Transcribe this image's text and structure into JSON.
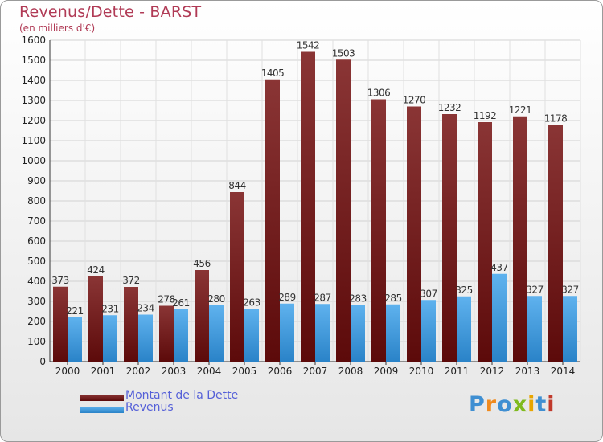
{
  "title": "Revenus/Dette - BARST",
  "subtitle": "(en milliers d'€)",
  "logo": {
    "text": "Proxiti"
  },
  "colors": {
    "title": "#b03a55",
    "dette_dark": "#5c0a0a",
    "dette_light": "#8a3535",
    "revenus_dark": "#2a83c8",
    "revenus_light": "#5fb2ee",
    "legend_text": "#5560d8"
  },
  "chart_data": {
    "type": "bar",
    "title": "Revenus/Dette - BARST",
    "subtitle": "(en milliers d'€)",
    "categories": [
      "2000",
      "2001",
      "2002",
      "2003",
      "2004",
      "2005",
      "2006",
      "2007",
      "2008",
      "2009",
      "2010",
      "2011",
      "2012",
      "2013",
      "2014"
    ],
    "series": [
      {
        "name": "Montant de la Dette",
        "values": [
          373,
          424,
          372,
          278,
          456,
          844,
          1405,
          1542,
          1503,
          1306,
          1270,
          1232,
          1192,
          1221,
          1178
        ]
      },
      {
        "name": "Revenus",
        "values": [
          221,
          231,
          234,
          261,
          280,
          263,
          289,
          287,
          283,
          285,
          307,
          325,
          437,
          327,
          327
        ]
      }
    ],
    "ylim": [
      0,
      1600
    ],
    "yticks": [
      0,
      100,
      200,
      300,
      400,
      500,
      600,
      700,
      800,
      900,
      1000,
      1100,
      1200,
      1300,
      1400,
      1500,
      1600
    ],
    "grid": true,
    "legend_position": "bottom-left"
  }
}
